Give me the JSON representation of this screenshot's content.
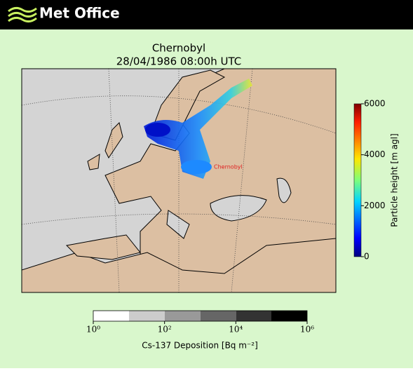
{
  "header": {
    "logo_text": "Met Office"
  },
  "title": {
    "line1": "Chernobyl",
    "line2": "28/04/1986 08:00h UTC"
  },
  "map": {
    "site_label": "Chernobyl"
  },
  "height_colorbar": {
    "label": "Particle height [m agl]",
    "lim": [
      0,
      6000
    ],
    "ticks": [
      0,
      2000,
      4000,
      6000
    ]
  },
  "deposition_colorbar": {
    "label": "Cs-137 Deposition [Bq m⁻²]",
    "lim": [
      0,
      6
    ],
    "ticks": [
      {
        "value": 0,
        "label": "10⁰"
      },
      {
        "value": 2,
        "label": "10²"
      },
      {
        "value": 4,
        "label": "10⁴"
      },
      {
        "value": 6,
        "label": "10⁶"
      }
    ]
  }
}
